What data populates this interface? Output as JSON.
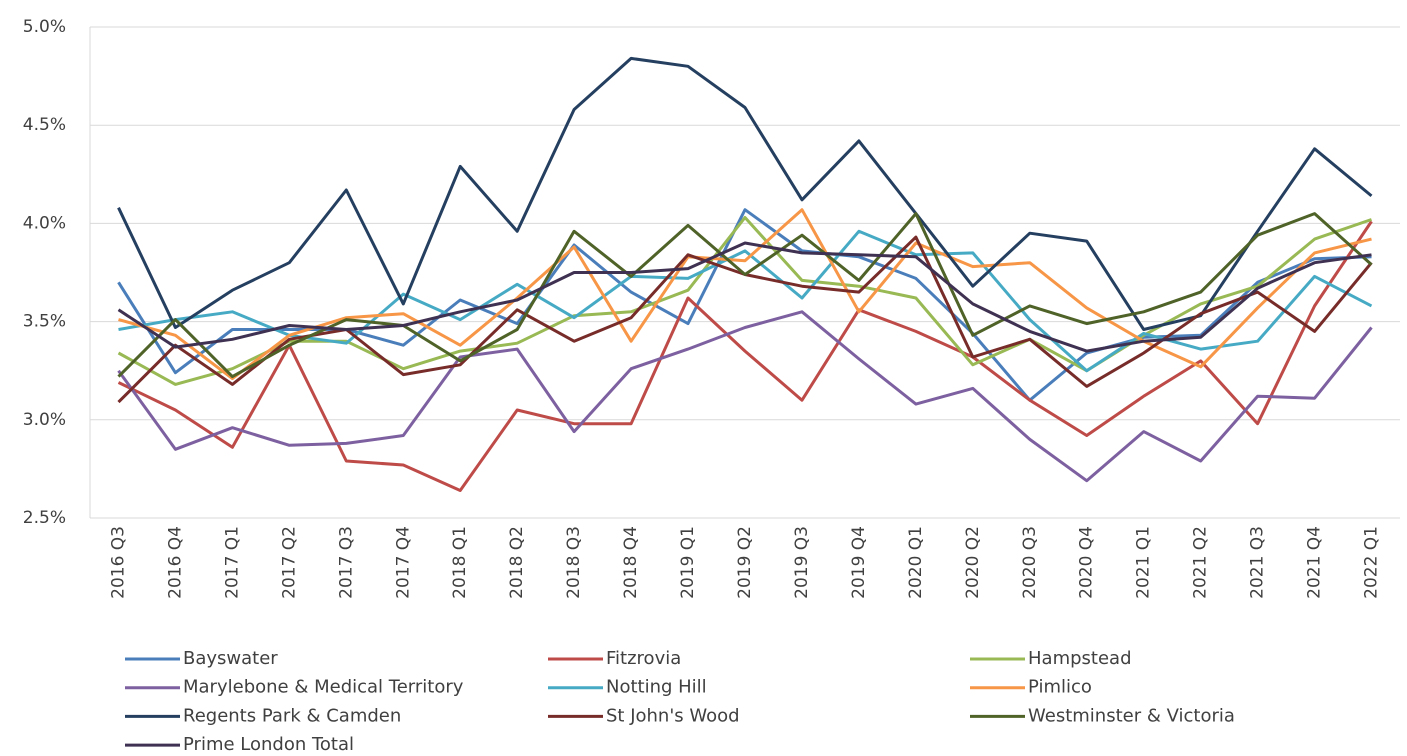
{
  "chart_data": {
    "type": "line",
    "categories": [
      "2016 Q3",
      "2016 Q4",
      "2017 Q1",
      "2017 Q2",
      "2017 Q3",
      "2017 Q4",
      "2018 Q1",
      "2018 Q2",
      "2018 Q3",
      "2018 Q4",
      "2019 Q1",
      "2019 Q2",
      "2019 Q3",
      "2019 Q4",
      "2020 Q1",
      "2020 Q2",
      "2020 Q3",
      "2020 Q4",
      "2021 Q1",
      "2021 Q2",
      "2021 Q3",
      "2021 Q4",
      "2022 Q1"
    ],
    "series": [
      {
        "name": "Bayswater",
        "color": "#4a7ebb",
        "values": [
          3.7,
          3.24,
          3.46,
          3.46,
          3.46,
          3.38,
          3.61,
          3.49,
          3.89,
          3.65,
          3.49,
          4.07,
          3.86,
          3.83,
          3.72,
          3.44,
          3.1,
          3.34,
          3.42,
          3.43,
          3.7,
          3.82,
          3.83
        ]
      },
      {
        "name": "Fitzrovia",
        "color": "#be4b48",
        "values": [
          3.19,
          3.05,
          2.86,
          3.38,
          2.79,
          2.77,
          2.64,
          3.05,
          2.98,
          2.98,
          3.62,
          3.35,
          3.1,
          3.56,
          3.45,
          3.32,
          3.1,
          2.92,
          3.12,
          3.3,
          2.98,
          3.58,
          4.01
        ]
      },
      {
        "name": "Hampstead",
        "color": "#98b954",
        "values": [
          3.34,
          3.18,
          3.26,
          3.4,
          3.4,
          3.26,
          3.35,
          3.39,
          3.53,
          3.55,
          3.66,
          4.03,
          3.71,
          3.68,
          3.62,
          3.28,
          3.41,
          3.25,
          3.43,
          3.59,
          3.68,
          3.92,
          4.02
        ]
      },
      {
        "name": "Marylebone & Medical Territory",
        "color": "#7d60a0",
        "values": [
          3.25,
          2.85,
          2.96,
          2.87,
          2.88,
          2.92,
          3.32,
          3.36,
          2.94,
          3.26,
          3.36,
          3.47,
          3.55,
          3.31,
          3.08,
          3.16,
          2.9,
          2.69,
          2.94,
          2.79,
          3.12,
          3.11,
          3.47
        ]
      },
      {
        "name": "Notting Hill",
        "color": "#46aac5",
        "values": [
          3.46,
          3.51,
          3.55,
          3.43,
          3.39,
          3.64,
          3.51,
          3.69,
          3.52,
          3.73,
          3.72,
          3.86,
          3.62,
          3.96,
          3.84,
          3.85,
          3.51,
          3.25,
          3.44,
          3.36,
          3.4,
          3.73,
          3.58
        ]
      },
      {
        "name": "Pimlico",
        "color": "#f79646",
        "values": [
          3.51,
          3.43,
          3.21,
          3.43,
          3.52,
          3.54,
          3.38,
          3.62,
          3.88,
          3.4,
          3.83,
          3.81,
          4.07,
          3.55,
          3.9,
          3.78,
          3.8,
          3.57,
          3.4,
          3.27,
          3.57,
          3.85,
          3.92
        ]
      },
      {
        "name": "Regents Park & Camden",
        "color": "#243f60",
        "values": [
          4.08,
          3.47,
          3.66,
          3.8,
          4.17,
          3.59,
          4.29,
          3.96,
          4.58,
          4.84,
          4.8,
          4.59,
          4.12,
          4.42,
          4.05,
          3.68,
          3.95,
          3.91,
          3.46,
          3.53,
          3.96,
          4.38,
          4.14
        ]
      },
      {
        "name": "St John's Wood",
        "color": "#772c2a",
        "values": [
          3.09,
          3.38,
          3.18,
          3.41,
          3.46,
          3.23,
          3.28,
          3.56,
          3.4,
          3.52,
          3.84,
          3.74,
          3.68,
          3.65,
          3.93,
          3.32,
          3.41,
          3.17,
          3.34,
          3.54,
          3.65,
          3.45,
          3.8
        ]
      },
      {
        "name": "Westminster & Victoria",
        "color": "#4f6228",
        "values": [
          3.22,
          3.51,
          3.22,
          3.38,
          3.51,
          3.48,
          3.3,
          3.46,
          3.96,
          3.73,
          3.99,
          3.74,
          3.94,
          3.71,
          4.05,
          3.43,
          3.58,
          3.49,
          3.55,
          3.65,
          3.94,
          4.05,
          3.79
        ]
      },
      {
        "name": "Prime London Total",
        "color": "#3f3151",
        "values": [
          3.56,
          3.37,
          3.41,
          3.48,
          3.46,
          3.48,
          3.55,
          3.61,
          3.75,
          3.75,
          3.77,
          3.9,
          3.85,
          3.84,
          3.83,
          3.59,
          3.45,
          3.35,
          3.4,
          3.42,
          3.67,
          3.8,
          3.84
        ]
      }
    ],
    "ylim": [
      2.5,
      5.0
    ],
    "yticks": [
      {
        "value": 2.5,
        "label": "2.5%"
      },
      {
        "value": 3.0,
        "label": "3.0%"
      },
      {
        "value": 3.5,
        "label": "3.5%"
      },
      {
        "value": 4.0,
        "label": "4.0%"
      },
      {
        "value": 4.5,
        "label": "4.5%"
      },
      {
        "value": 5.0,
        "label": "5.0%"
      }
    ],
    "grid": true,
    "legend": "bottom"
  }
}
